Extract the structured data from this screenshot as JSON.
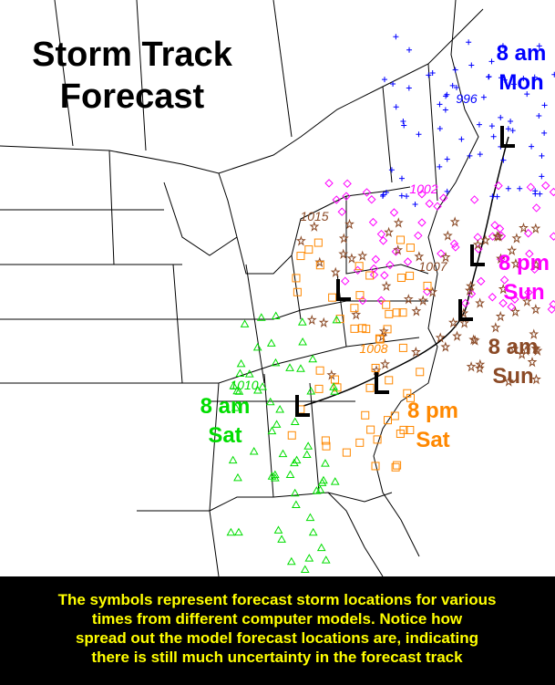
{
  "title": {
    "lines": [
      "Storm Track",
      "Forecast"
    ]
  },
  "time_labels": [
    {
      "time": "8 am",
      "day": "Mon",
      "color": "#0000ff"
    },
    {
      "time": "8 pm",
      "day": "Sun",
      "color": "#ff00ff"
    },
    {
      "time": "8 am",
      "day": "Sun",
      "color": "#8b4a26"
    },
    {
      "time": "8 pm",
      "day": "Sat",
      "color": "#ff8800"
    },
    {
      "time": "8 am",
      "day": "Sat",
      "color": "#00dd00"
    }
  ],
  "pressure_labels": [
    {
      "text": "996",
      "color": "#0000ff"
    },
    {
      "text": "1002",
      "color": "#ff00ff"
    },
    {
      "text": "1015",
      "color": "#8b4a26"
    },
    {
      "text": "1007",
      "color": "#8b4a26"
    },
    {
      "text": "1008",
      "color": "#ff8800"
    },
    {
      "text": "1010",
      "color": "#00dd00"
    }
  ],
  "caption": {
    "lines": [
      "The symbols represent forecast storm locations for various",
      "times from different computer models.  Notice how",
      "spread out the model forecast locations are, indicating",
      "there is still much uncertainty in the forecast track"
    ]
  }
}
